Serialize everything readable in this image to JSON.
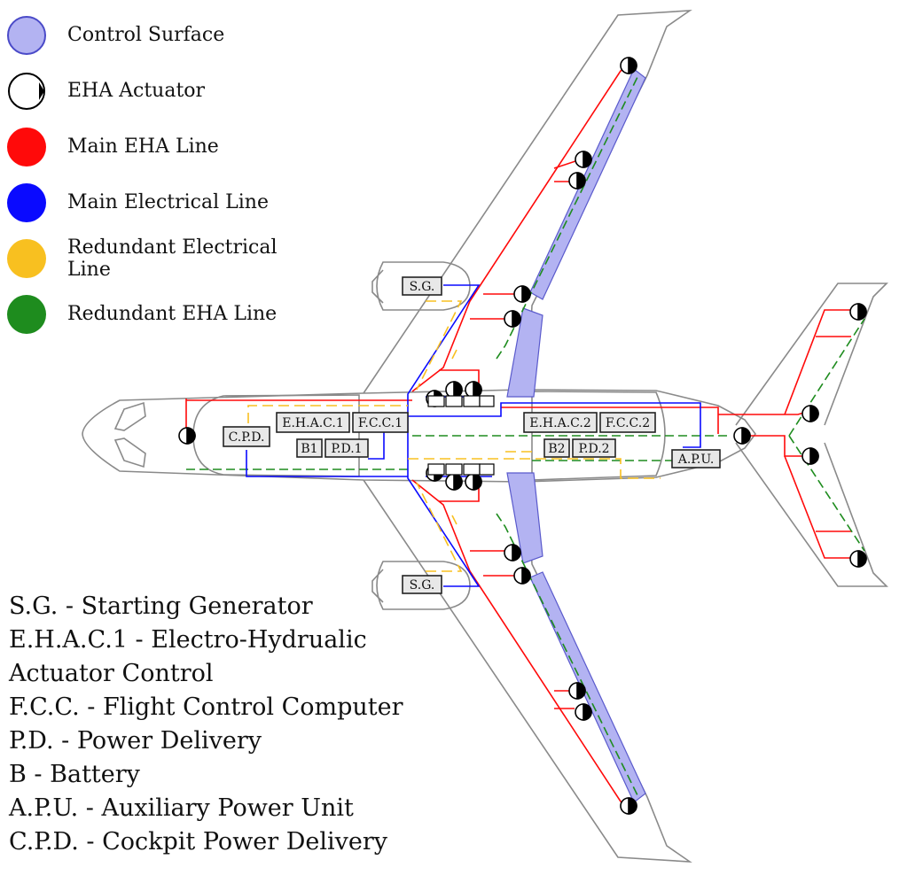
{
  "legend": [
    {
      "label": "Control Surface",
      "swatch": "control-surface",
      "fill": "#b3b3f2",
      "stroke": "#4a4ac8"
    },
    {
      "label": "EHA Actuator",
      "swatch": "eha-actuator",
      "fill": "#ffffff",
      "stroke": "#000000"
    },
    {
      "label": "Main EHA Line",
      "swatch": "main-eha-line",
      "fill": "#ff0a0a",
      "stroke": "#ff0a0a"
    },
    {
      "label": "Main Electrical Line",
      "swatch": "main-electrical-line",
      "fill": "#0a0aff",
      "stroke": "#0a0aff"
    },
    {
      "label": "Redundant Electrical Line",
      "swatch": "redundant-electrical-line",
      "fill": "#f8c020",
      "stroke": "#f8c020"
    },
    {
      "label": "Redundant EHA Line",
      "swatch": "redundant-eha-line",
      "fill": "#1e8c1e",
      "stroke": "#1e8c1e"
    }
  ],
  "abbreviations": [
    "S.G. - Starting Generator",
    "E.H.A.C.1 - Electro-Hydrualic",
    "Actuator Control",
    "F.C.C. - Flight Control Computer",
    "P.D. - Power Delivery",
    "B - Battery",
    "A.P.U. - Auxiliary Power Unit",
    "C.P.D. - Cockpit Power Delivery"
  ],
  "components": {
    "sg_upper": "S.G.",
    "sg_lower": "S.G.",
    "cpd": "C.P.D.",
    "ehac1": "E.H.A.C.1",
    "fcc1": "F.C.C.1",
    "b1": "B1",
    "pd1": "P.D.1",
    "ehac2": "E.H.A.C.2",
    "fcc2": "F.C.C.2",
    "b2": "B2",
    "pd2": "P.D.2",
    "apu": "A.P.U."
  },
  "colors": {
    "outline": "#8a8a8a",
    "main_eha": "#ff0a0a",
    "main_electrical": "#0a0aff",
    "redundant_electrical": "#f8c020",
    "redundant_eha": "#1e8c1e",
    "control_surface": "#b3b3f2"
  }
}
